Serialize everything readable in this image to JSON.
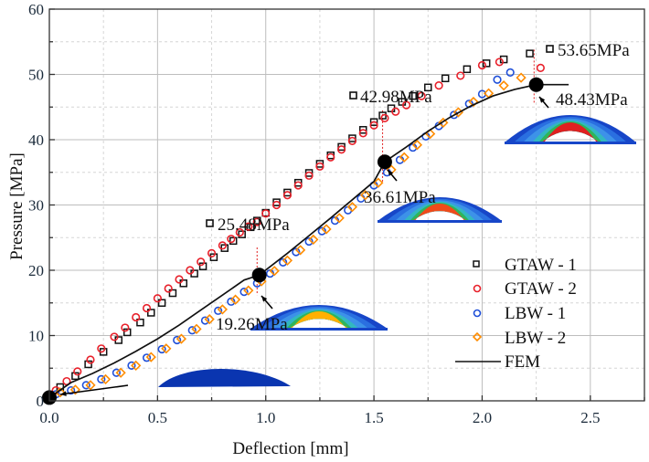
{
  "chart_data": {
    "type": "scatter",
    "title": "",
    "xlabel": "Deflection [mm]",
    "ylabel": "Pressure [MPa]",
    "xlim": [
      0,
      2.75
    ],
    "ylim": [
      0,
      60
    ],
    "xticks": [
      "0.0",
      "0.5",
      "1.0",
      "1.5",
      "2.0",
      "2.5"
    ],
    "yticks": [
      "0",
      "10",
      "20",
      "30",
      "40",
      "50",
      "60"
    ],
    "grid": true,
    "legend_position": "lower-right",
    "series": [
      {
        "name": "GTAW - 1",
        "marker": "square",
        "color": "#111111",
        "x": [
          0.05,
          0.12,
          0.18,
          0.25,
          0.32,
          0.36,
          0.42,
          0.47,
          0.52,
          0.57,
          0.62,
          0.67,
          0.71,
          0.76,
          0.81,
          0.85,
          0.89,
          0.93,
          0.96,
          1.0,
          1.05,
          1.1,
          1.15,
          1.2,
          1.25,
          1.3,
          1.35,
          1.4,
          1.45,
          1.5,
          1.54,
          1.58,
          1.63,
          1.68,
          1.75,
          1.83,
          1.93,
          2.02,
          2.1,
          2.22
        ],
        "y": [
          2.1,
          3.8,
          5.6,
          7.5,
          9.3,
          10.5,
          12.0,
          13.5,
          15.0,
          16.5,
          18.0,
          19.5,
          20.6,
          22.0,
          23.4,
          24.5,
          25.5,
          26.6,
          27.6,
          28.8,
          30.4,
          31.9,
          33.4,
          34.9,
          36.3,
          37.6,
          38.9,
          40.2,
          41.5,
          42.7,
          43.7,
          44.8,
          45.8,
          46.7,
          48.0,
          49.4,
          50.8,
          51.7,
          52.3,
          53.2
        ]
      },
      {
        "name": "GTAW - 2",
        "marker": "circle",
        "color": "#e8202a",
        "x": [
          0.03,
          0.08,
          0.13,
          0.19,
          0.24,
          0.3,
          0.35,
          0.4,
          0.45,
          0.5,
          0.55,
          0.6,
          0.65,
          0.7,
          0.75,
          0.8,
          0.84,
          0.88,
          0.92,
          0.96,
          1.0,
          1.05,
          1.1,
          1.15,
          1.2,
          1.25,
          1.3,
          1.35,
          1.4,
          1.45,
          1.5,
          1.55,
          1.6,
          1.65,
          1.72,
          1.8,
          1.9,
          2.0,
          2.08,
          2.27
        ],
        "y": [
          1.6,
          3.0,
          4.5,
          6.3,
          8.0,
          9.8,
          11.2,
          12.8,
          14.2,
          15.7,
          17.2,
          18.6,
          20.0,
          21.3,
          22.6,
          23.8,
          24.8,
          25.8,
          26.7,
          27.4,
          28.7,
          30.0,
          31.5,
          33.0,
          34.5,
          35.9,
          37.3,
          38.5,
          39.8,
          41.0,
          42.2,
          43.3,
          44.3,
          45.3,
          46.7,
          48.3,
          49.8,
          51.4,
          51.9,
          51.0
        ]
      },
      {
        "name": "LBW - 1",
        "marker": "circle",
        "color": "#1f4fd8",
        "x": [
          0.03,
          0.1,
          0.17,
          0.24,
          0.31,
          0.38,
          0.45,
          0.52,
          0.59,
          0.66,
          0.72,
          0.78,
          0.84,
          0.9,
          0.96,
          1.02,
          1.08,
          1.14,
          1.2,
          1.26,
          1.32,
          1.38,
          1.44,
          1.5,
          1.56,
          1.62,
          1.68,
          1.74,
          1.8,
          1.87,
          1.94,
          2.0,
          2.07,
          2.13
        ],
        "y": [
          1.0,
          1.6,
          2.4,
          3.3,
          4.3,
          5.4,
          6.6,
          7.9,
          9.3,
          10.8,
          12.3,
          13.8,
          15.2,
          16.7,
          18.0,
          19.5,
          21.2,
          22.8,
          24.4,
          26.0,
          27.6,
          29.2,
          31.0,
          33.0,
          35.0,
          36.9,
          38.8,
          40.5,
          42.1,
          43.8,
          45.5,
          47.0,
          49.2,
          50.3
        ]
      },
      {
        "name": "LBW - 2",
        "marker": "diamond",
        "color": "#ff8c00",
        "x": [
          0.05,
          0.12,
          0.19,
          0.26,
          0.33,
          0.4,
          0.47,
          0.54,
          0.61,
          0.68,
          0.74,
          0.8,
          0.86,
          0.92,
          0.98,
          1.04,
          1.1,
          1.16,
          1.22,
          1.28,
          1.34,
          1.4,
          1.46,
          1.52,
          1.58,
          1.64,
          1.7,
          1.76,
          1.82,
          1.89,
          1.96,
          2.03,
          2.1,
          2.18
        ],
        "y": [
          1.3,
          1.7,
          2.4,
          3.3,
          4.3,
          5.4,
          6.7,
          8.0,
          9.5,
          11.0,
          12.5,
          14.0,
          15.5,
          16.9,
          18.3,
          19.9,
          21.5,
          23.1,
          24.7,
          26.3,
          28.0,
          29.7,
          31.5,
          33.4,
          35.4,
          37.3,
          39.2,
          40.9,
          42.6,
          44.2,
          45.8,
          47.1,
          48.3,
          49.5
        ]
      },
      {
        "name": "FEM",
        "marker": "line",
        "color": "#111111",
        "x": [
          0.0,
          0.1,
          0.2,
          0.3,
          0.4,
          0.5,
          0.6,
          0.7,
          0.8,
          0.9,
          0.97,
          1.1,
          1.2,
          1.3,
          1.4,
          1.5,
          1.55,
          1.65,
          1.75,
          1.85,
          1.95,
          2.05,
          2.15,
          2.25,
          2.35,
          2.4
        ],
        "y": [
          0.5,
          2.8,
          4.2,
          5.8,
          7.6,
          9.5,
          11.6,
          13.9,
          16.2,
          18.5,
          19.26,
          22.6,
          25.3,
          28.0,
          30.8,
          33.6,
          36.61,
          38.9,
          41.3,
          43.4,
          45.2,
          46.7,
          47.7,
          48.43,
          48.43,
          48.43
        ]
      }
    ],
    "key_points": [
      {
        "x": 0.0,
        "y": 0.5,
        "label": ""
      },
      {
        "x": 0.97,
        "y": 19.26,
        "label": "19.26MPa"
      },
      {
        "x": 1.55,
        "y": 36.61,
        "label": "36.61MPa"
      },
      {
        "x": 2.25,
        "y": 48.43,
        "label": "48.43MPa"
      }
    ],
    "annotations": [
      {
        "text": "25.48MPa",
        "series": "GTAW - 1",
        "x": 0.75,
        "y": 26.9
      },
      {
        "text": "42.98MPa",
        "series": "GTAW - 1",
        "x": 1.4,
        "y": 47.0
      },
      {
        "text": "53.65MPa",
        "series": "GTAW - 1",
        "x": 2.3,
        "y": 53.8
      },
      {
        "text": "19.26MPa",
        "series": "FEM"
      },
      {
        "text": "36.61MPa",
        "series": "FEM"
      },
      {
        "text": "48.43MPa",
        "series": "FEM"
      }
    ],
    "reference_lines_x": [
      0.96,
      1.54,
      2.24
    ],
    "insets": [
      "fem-deformed-shape-initial",
      "fem-contour-19.26MPa",
      "fem-contour-36.61MPa",
      "fem-contour-48.43MPa"
    ]
  }
}
